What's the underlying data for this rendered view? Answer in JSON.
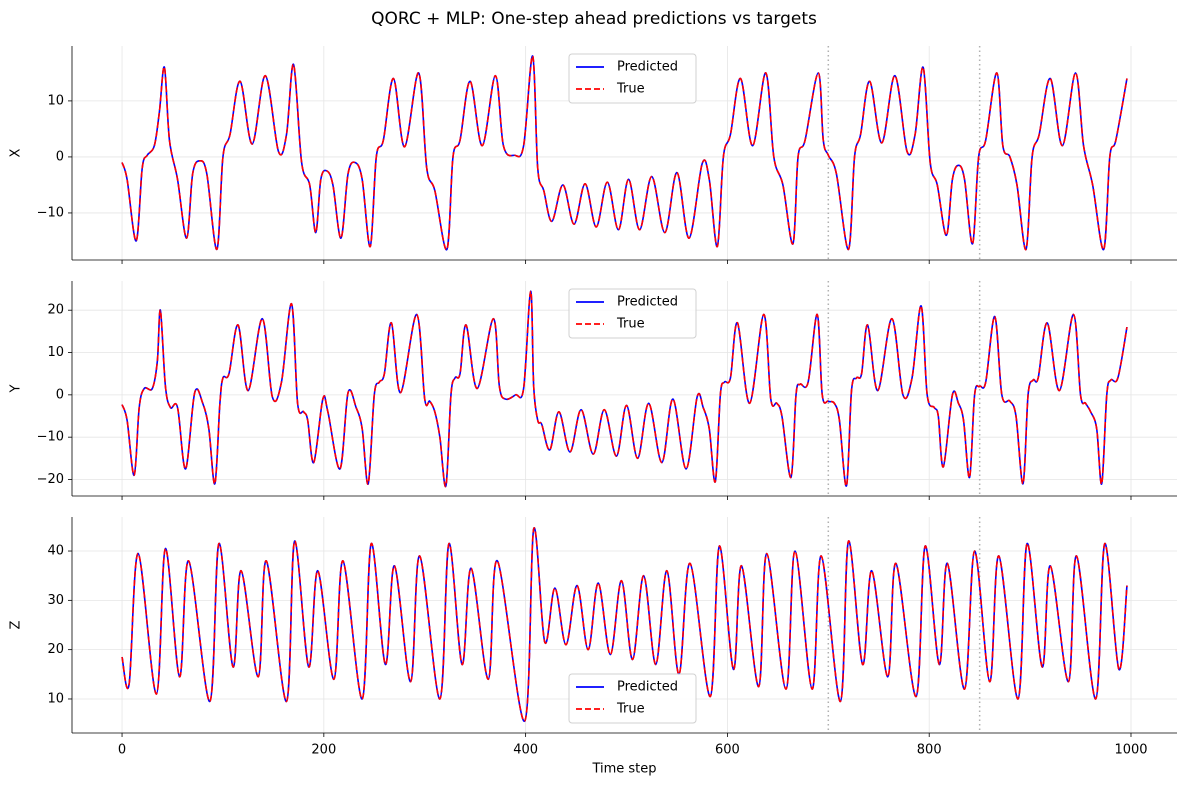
{
  "title": "QORC + MLP: One-step ahead predictions vs targets",
  "chart_data": [
    {
      "type": "line",
      "ylabel": "X",
      "x": [
        0,
        5,
        14,
        20,
        25,
        32,
        37,
        42,
        47,
        55,
        64,
        70,
        77,
        84,
        94,
        100,
        107,
        117,
        129,
        142,
        155,
        163,
        170,
        178,
        186,
        192,
        197,
        203,
        209,
        217,
        224,
        231,
        238,
        246,
        252,
        259,
        269,
        280,
        294,
        302,
        310,
        322,
        328,
        335,
        345,
        357,
        370,
        378,
        389,
        398,
        407,
        412,
        418,
        426,
        437,
        448,
        459,
        470,
        481,
        492,
        502,
        513,
        525,
        538,
        550,
        562,
        575,
        582,
        590,
        596,
        603,
        613,
        625,
        638,
        646,
        655,
        665,
        670,
        677,
        690,
        695,
        700,
        708,
        720,
        726,
        732,
        741,
        753,
        766,
        778,
        786,
        794,
        801,
        808,
        817,
        823,
        829,
        835,
        843,
        849,
        856,
        867,
        873,
        880,
        887,
        896,
        902,
        909,
        920,
        932,
        945,
        953,
        962,
        973,
        979,
        985,
        996
      ],
      "series": [
        {
          "name": "Predicted",
          "color": "#0000ff",
          "dashed": false,
          "values": [
            -1,
            -4,
            -15,
            -2,
            0.3,
            2,
            8,
            16,
            3,
            -4,
            -14.5,
            -3,
            -0.7,
            -3,
            -16.5,
            0,
            4,
            13.5,
            2.3,
            14.5,
            1,
            4,
            16.5,
            -1,
            -5,
            -13.5,
            -4,
            -2.5,
            -5,
            -14.5,
            -3,
            -1,
            -4,
            -16,
            0,
            3,
            14,
            1.8,
            15,
            -2,
            -6,
            -16.5,
            0,
            3,
            13.5,
            2,
            14.5,
            2,
            0.3,
            2,
            18,
            -2,
            -6,
            -11.5,
            -5,
            -12,
            -4.8,
            -12.5,
            -4.5,
            -13,
            -4,
            -13,
            -3.5,
            -13.5,
            -2.8,
            -14.5,
            -1.2,
            -4,
            -16,
            0,
            4,
            14,
            2,
            15,
            0,
            -5,
            -15.5,
            0,
            3,
            15,
            3,
            0.3,
            -3,
            -16.5,
            0,
            4,
            13.5,
            2.5,
            14.5,
            1,
            4,
            16,
            -1,
            -5,
            -14,
            -4,
            -1.5,
            -4,
            -15.5,
            0,
            3,
            15,
            2,
            0,
            -5,
            -16.5,
            0,
            4,
            14,
            2,
            15,
            2,
            -5,
            -16.5,
            0,
            3,
            14
          ]
        },
        {
          "name": "True",
          "color": "#ff0000",
          "dashed": true,
          "values": [
            -1,
            -4,
            -15,
            -2,
            0.3,
            2,
            8,
            16,
            3,
            -4,
            -14.5,
            -3,
            -0.7,
            -3,
            -16.5,
            0,
            4,
            13.5,
            2.3,
            14.5,
            1,
            4,
            16.5,
            -1,
            -5,
            -13.5,
            -4,
            -2.5,
            -5,
            -14.5,
            -3,
            -1,
            -4,
            -16,
            0,
            3,
            14,
            1.8,
            15,
            -2,
            -6,
            -16.5,
            0,
            3,
            13.5,
            2,
            14.5,
            2,
            0.3,
            2,
            18,
            -2,
            -6,
            -11.5,
            -5,
            -12,
            -4.8,
            -12.5,
            -4.5,
            -13,
            -4,
            -13,
            -3.5,
            -13.5,
            -2.8,
            -14.5,
            -1.2,
            -4,
            -16,
            0,
            4,
            14,
            2,
            15,
            0,
            -5,
            -15.5,
            0,
            3,
            15,
            3,
            0.3,
            -3,
            -16.5,
            0,
            4,
            13.5,
            2.5,
            14.5,
            1,
            4,
            16,
            -1,
            -5,
            -14,
            -4,
            -1.5,
            -4,
            -15.5,
            0,
            3,
            15,
            2,
            0,
            -5,
            -16.5,
            0,
            4,
            14,
            2,
            15,
            2,
            -5,
            -16.5,
            0,
            3,
            14
          ]
        }
      ],
      "xlim": [
        -49.6,
        1045.6
      ],
      "xticks": [
        0,
        200,
        400,
        600,
        800,
        1000
      ],
      "xtick_labels": false,
      "ylim": [
        -18.4,
        19.8
      ],
      "yticks": [
        {
          "value": -10,
          "label": "−10"
        },
        0,
        10
      ],
      "grid": true,
      "legend": "upper center",
      "vlines": [
        700,
        850
      ],
      "vline_color": "#b0b0b0"
    },
    {
      "type": "line",
      "ylabel": "Y",
      "x": [
        0,
        5,
        12,
        17,
        22,
        30,
        35,
        38,
        43,
        48,
        55,
        63,
        72,
        80,
        86,
        92,
        97,
        100,
        106,
        115,
        125,
        139,
        149,
        158,
        168,
        174,
        180,
        184,
        190,
        199,
        204,
        216,
        224,
        232,
        238,
        244,
        250,
        255,
        260,
        267,
        276,
        292,
        300,
        305,
        310,
        315,
        321,
        326,
        330,
        335,
        341,
        352,
        368,
        374,
        380,
        390,
        398,
        405,
        408,
        412,
        416,
        424,
        433,
        444,
        455,
        467,
        478,
        490,
        500,
        511,
        522,
        535,
        546,
        559,
        570,
        576,
        582,
        588,
        593,
        597,
        603,
        610,
        622,
        636,
        643,
        649,
        654,
        663,
        668,
        672,
        680,
        689,
        694,
        700,
        706,
        711,
        718,
        723,
        728,
        733,
        739,
        749,
        763,
        774,
        783,
        792,
        798,
        805,
        809,
        814,
        823,
        829,
        834,
        840,
        845,
        850,
        856,
        865,
        872,
        880,
        886,
        893,
        898,
        903,
        908,
        917,
        929,
        943,
        950,
        955,
        960,
        966,
        971,
        976,
        980,
        987,
        996
      ],
      "series": [
        {
          "name": "Predicted",
          "color": "#0000ff",
          "dashed": false,
          "values": [
            -2.3,
            -6,
            -19,
            -3,
            1.5,
            1.5,
            8,
            20,
            2,
            -3,
            -3,
            -17.5,
            0.5,
            -2,
            -8,
            -21,
            -2,
            4,
            5,
            16.5,
            1,
            18,
            -0.5,
            3,
            21.5,
            -2,
            -4,
            -6,
            -16,
            -1,
            -4,
            -17.5,
            0.5,
            -3,
            -8,
            -21,
            0,
            3,
            5,
            17,
            0.5,
            19,
            -1,
            -1.5,
            -4,
            -10,
            -21.5,
            0,
            4,
            5,
            16.5,
            1.5,
            18,
            2,
            -1,
            0,
            1.5,
            24.5,
            2,
            -6,
            -7,
            -13,
            -4,
            -13.5,
            -3.5,
            -14,
            -3.5,
            -14.5,
            -2.5,
            -15,
            -2,
            -16,
            -1,
            -17.5,
            -0.5,
            -3,
            -8,
            -20.5,
            0,
            3,
            4,
            17,
            -2,
            19,
            -1,
            -2,
            -5,
            -19.5,
            0,
            2.5,
            3,
            19,
            0,
            -1.5,
            -2,
            -6,
            -21.5,
            1,
            4,
            5,
            16.5,
            1,
            18,
            0,
            4,
            21,
            0,
            -3,
            -5,
            -17,
            0,
            -2,
            -6,
            -19.5,
            0,
            2,
            3,
            18.5,
            0,
            -1.5,
            -5,
            -21,
            0,
            3.5,
            4,
            17,
            1,
            19,
            0,
            -2,
            -4,
            -8,
            -21,
            0,
            3.5,
            4,
            16
          ]
        },
        {
          "name": "True",
          "color": "#ff0000",
          "dashed": true,
          "values": [
            -2.3,
            -6,
            -19,
            -3,
            1.5,
            1.5,
            8,
            20,
            2,
            -3,
            -3,
            -17.5,
            0.5,
            -2,
            -8,
            -21,
            -2,
            4,
            5,
            16.5,
            1,
            18,
            -0.5,
            3,
            21.5,
            -2,
            -4,
            -6,
            -16,
            -1,
            -4,
            -17.5,
            0.5,
            -3,
            -8,
            -21,
            0,
            3,
            5,
            17,
            0.5,
            19,
            -1,
            -1.5,
            -4,
            -10,
            -21.5,
            0,
            4,
            5,
            16.5,
            1.5,
            18,
            2,
            -1,
            0,
            1.5,
            24.5,
            2,
            -6,
            -7,
            -13,
            -4,
            -13.5,
            -3.5,
            -14,
            -3.5,
            -14.5,
            -2.5,
            -15,
            -2,
            -16,
            -1,
            -17.5,
            -0.5,
            -3,
            -8,
            -20.5,
            0,
            3,
            4,
            17,
            -2,
            19,
            -1,
            -2,
            -5,
            -19.5,
            0,
            2.5,
            3,
            19,
            0,
            -1.5,
            -2,
            -6,
            -21.5,
            1,
            4,
            5,
            16.5,
            1,
            18,
            0,
            4,
            21,
            0,
            -3,
            -5,
            -17,
            0,
            -2,
            -6,
            -19.5,
            0,
            2,
            3,
            18.5,
            0,
            -1.5,
            -5,
            -21,
            0,
            3.5,
            4,
            17,
            1,
            19,
            0,
            -2,
            -4,
            -8,
            -21,
            0,
            3.5,
            4,
            16
          ]
        }
      ],
      "xlim": [
        -49.6,
        1045.6
      ],
      "xticks": [
        0,
        200,
        400,
        600,
        800,
        1000
      ],
      "xtick_labels": false,
      "ylim": [
        -23.9,
        26.9
      ],
      "yticks": [
        {
          "value": -20,
          "label": "−20"
        },
        {
          "value": -10,
          "label": "−10"
        },
        0,
        10,
        20
      ],
      "grid": true,
      "legend": "upper center",
      "vlines": [
        700,
        850
      ],
      "vline_color": "#b0b0b0"
    },
    {
      "type": "line",
      "ylabel": "Z",
      "xlabel": "Time step",
      "x": [
        0,
        7,
        16,
        34,
        43,
        57,
        66,
        87,
        96,
        110,
        118,
        135,
        143,
        163,
        171,
        185,
        194,
        210,
        219,
        238,
        247,
        261,
        270,
        286,
        295,
        315,
        324,
        337,
        346,
        363,
        372,
        399,
        408,
        419,
        429,
        440,
        451,
        462,
        472,
        484,
        495,
        506,
        517,
        529,
        540,
        552,
        563,
        583,
        592,
        606,
        614,
        631,
        639,
        658,
        667,
        684,
        693,
        712,
        720,
        734,
        743,
        759,
        767,
        787,
        796,
        810,
        818,
        835,
        845,
        860,
        869,
        888,
        897,
        912,
        920,
        938,
        946,
        965,
        974,
        988,
        996
      ],
      "series": [
        {
          "name": "Predicted",
          "color": "#0000ff",
          "dashed": false,
          "values": [
            18.5,
            13,
            39.5,
            11,
            40.5,
            14.5,
            38,
            9.5,
            41.5,
            16.5,
            36,
            14.5,
            38,
            9.5,
            42,
            16.5,
            36,
            14,
            38,
            10,
            41.5,
            17,
            37,
            13.5,
            39,
            10,
            41.5,
            17,
            36.5,
            14,
            38,
            5.5,
            44.5,
            21.5,
            32.5,
            21,
            33,
            20,
            33.5,
            19,
            34,
            18,
            35,
            17,
            36,
            15,
            37.5,
            10.5,
            41,
            16,
            37,
            12.5,
            39.5,
            12,
            40,
            12,
            39,
            9.5,
            42,
            17,
            36,
            14.5,
            37.5,
            10.5,
            41,
            17,
            37.5,
            12,
            40,
            13.5,
            39,
            10,
            41.5,
            16.5,
            37,
            13.5,
            39,
            10,
            41.5,
            16,
            33
          ]
        },
        {
          "name": "True",
          "color": "#ff0000",
          "dashed": true,
          "values": [
            18.5,
            13,
            39.5,
            11,
            40.5,
            14.5,
            38,
            9.5,
            41.5,
            16.5,
            36,
            14.5,
            38,
            9.5,
            42,
            16.5,
            36,
            14,
            38,
            10,
            41.5,
            17,
            37,
            13.5,
            39,
            10,
            41.5,
            17,
            36.5,
            14,
            38,
            5.5,
            44.5,
            21.5,
            32.5,
            21,
            33,
            20,
            33.5,
            19,
            34,
            18,
            35,
            17,
            36,
            15,
            37.5,
            10.5,
            41,
            16,
            37,
            12.5,
            39.5,
            12,
            40,
            12,
            39,
            9.5,
            42,
            17,
            36,
            14.5,
            37.5,
            10.5,
            41,
            17,
            37.5,
            12,
            40,
            13.5,
            39,
            10,
            41.5,
            16.5,
            37,
            13.5,
            39,
            10,
            41.5,
            16,
            33
          ]
        }
      ],
      "xlim": [
        -49.6,
        1045.6
      ],
      "xticks": [
        0,
        200,
        400,
        600,
        800,
        1000
      ],
      "xtick_labels": true,
      "ylim": [
        3.1,
        46.9
      ],
      "yticks": [
        10,
        20,
        30,
        40
      ],
      "grid": true,
      "legend": "lower center",
      "vlines": [
        700,
        850
      ],
      "vline_color": "#b0b0b0"
    }
  ]
}
